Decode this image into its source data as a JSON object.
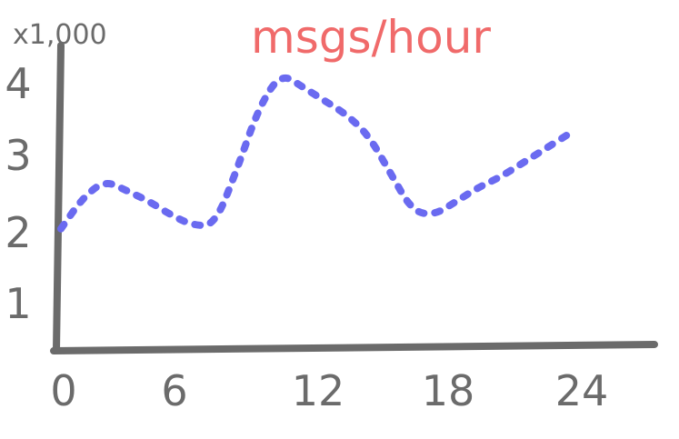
{
  "chart_data": {
    "type": "line",
    "title": "msgs/hour",
    "y_multiplier_label": "x1,000",
    "x_ticks": [
      "0",
      "6",
      "12",
      "18",
      "24"
    ],
    "y_ticks": [
      "1",
      "2",
      "3",
      "4"
    ],
    "xlim": [
      0,
      27
    ],
    "ylim": [
      0,
      4.4
    ],
    "grid": false,
    "line_style": "dotted",
    "colors": {
      "axis": "#6b6b6b",
      "title": "#f06a6a",
      "series": "#6a6af0"
    },
    "series": [
      {
        "x": [
          0,
          1,
          2,
          3,
          4,
          5,
          6,
          7,
          8,
          9,
          10,
          11,
          12,
          13,
          14,
          15,
          16,
          17,
          18,
          19,
          20,
          21,
          22,
          23
        ],
        "y": [
          1.75,
          2.2,
          2.45,
          2.3,
          2.15,
          1.95,
          1.8,
          1.8,
          2.6,
          3.5,
          4.0,
          3.8,
          3.6,
          3.4,
          3.1,
          2.55,
          2.0,
          1.95,
          2.15,
          2.35,
          2.5,
          2.7,
          2.9,
          3.1
        ]
      }
    ]
  }
}
